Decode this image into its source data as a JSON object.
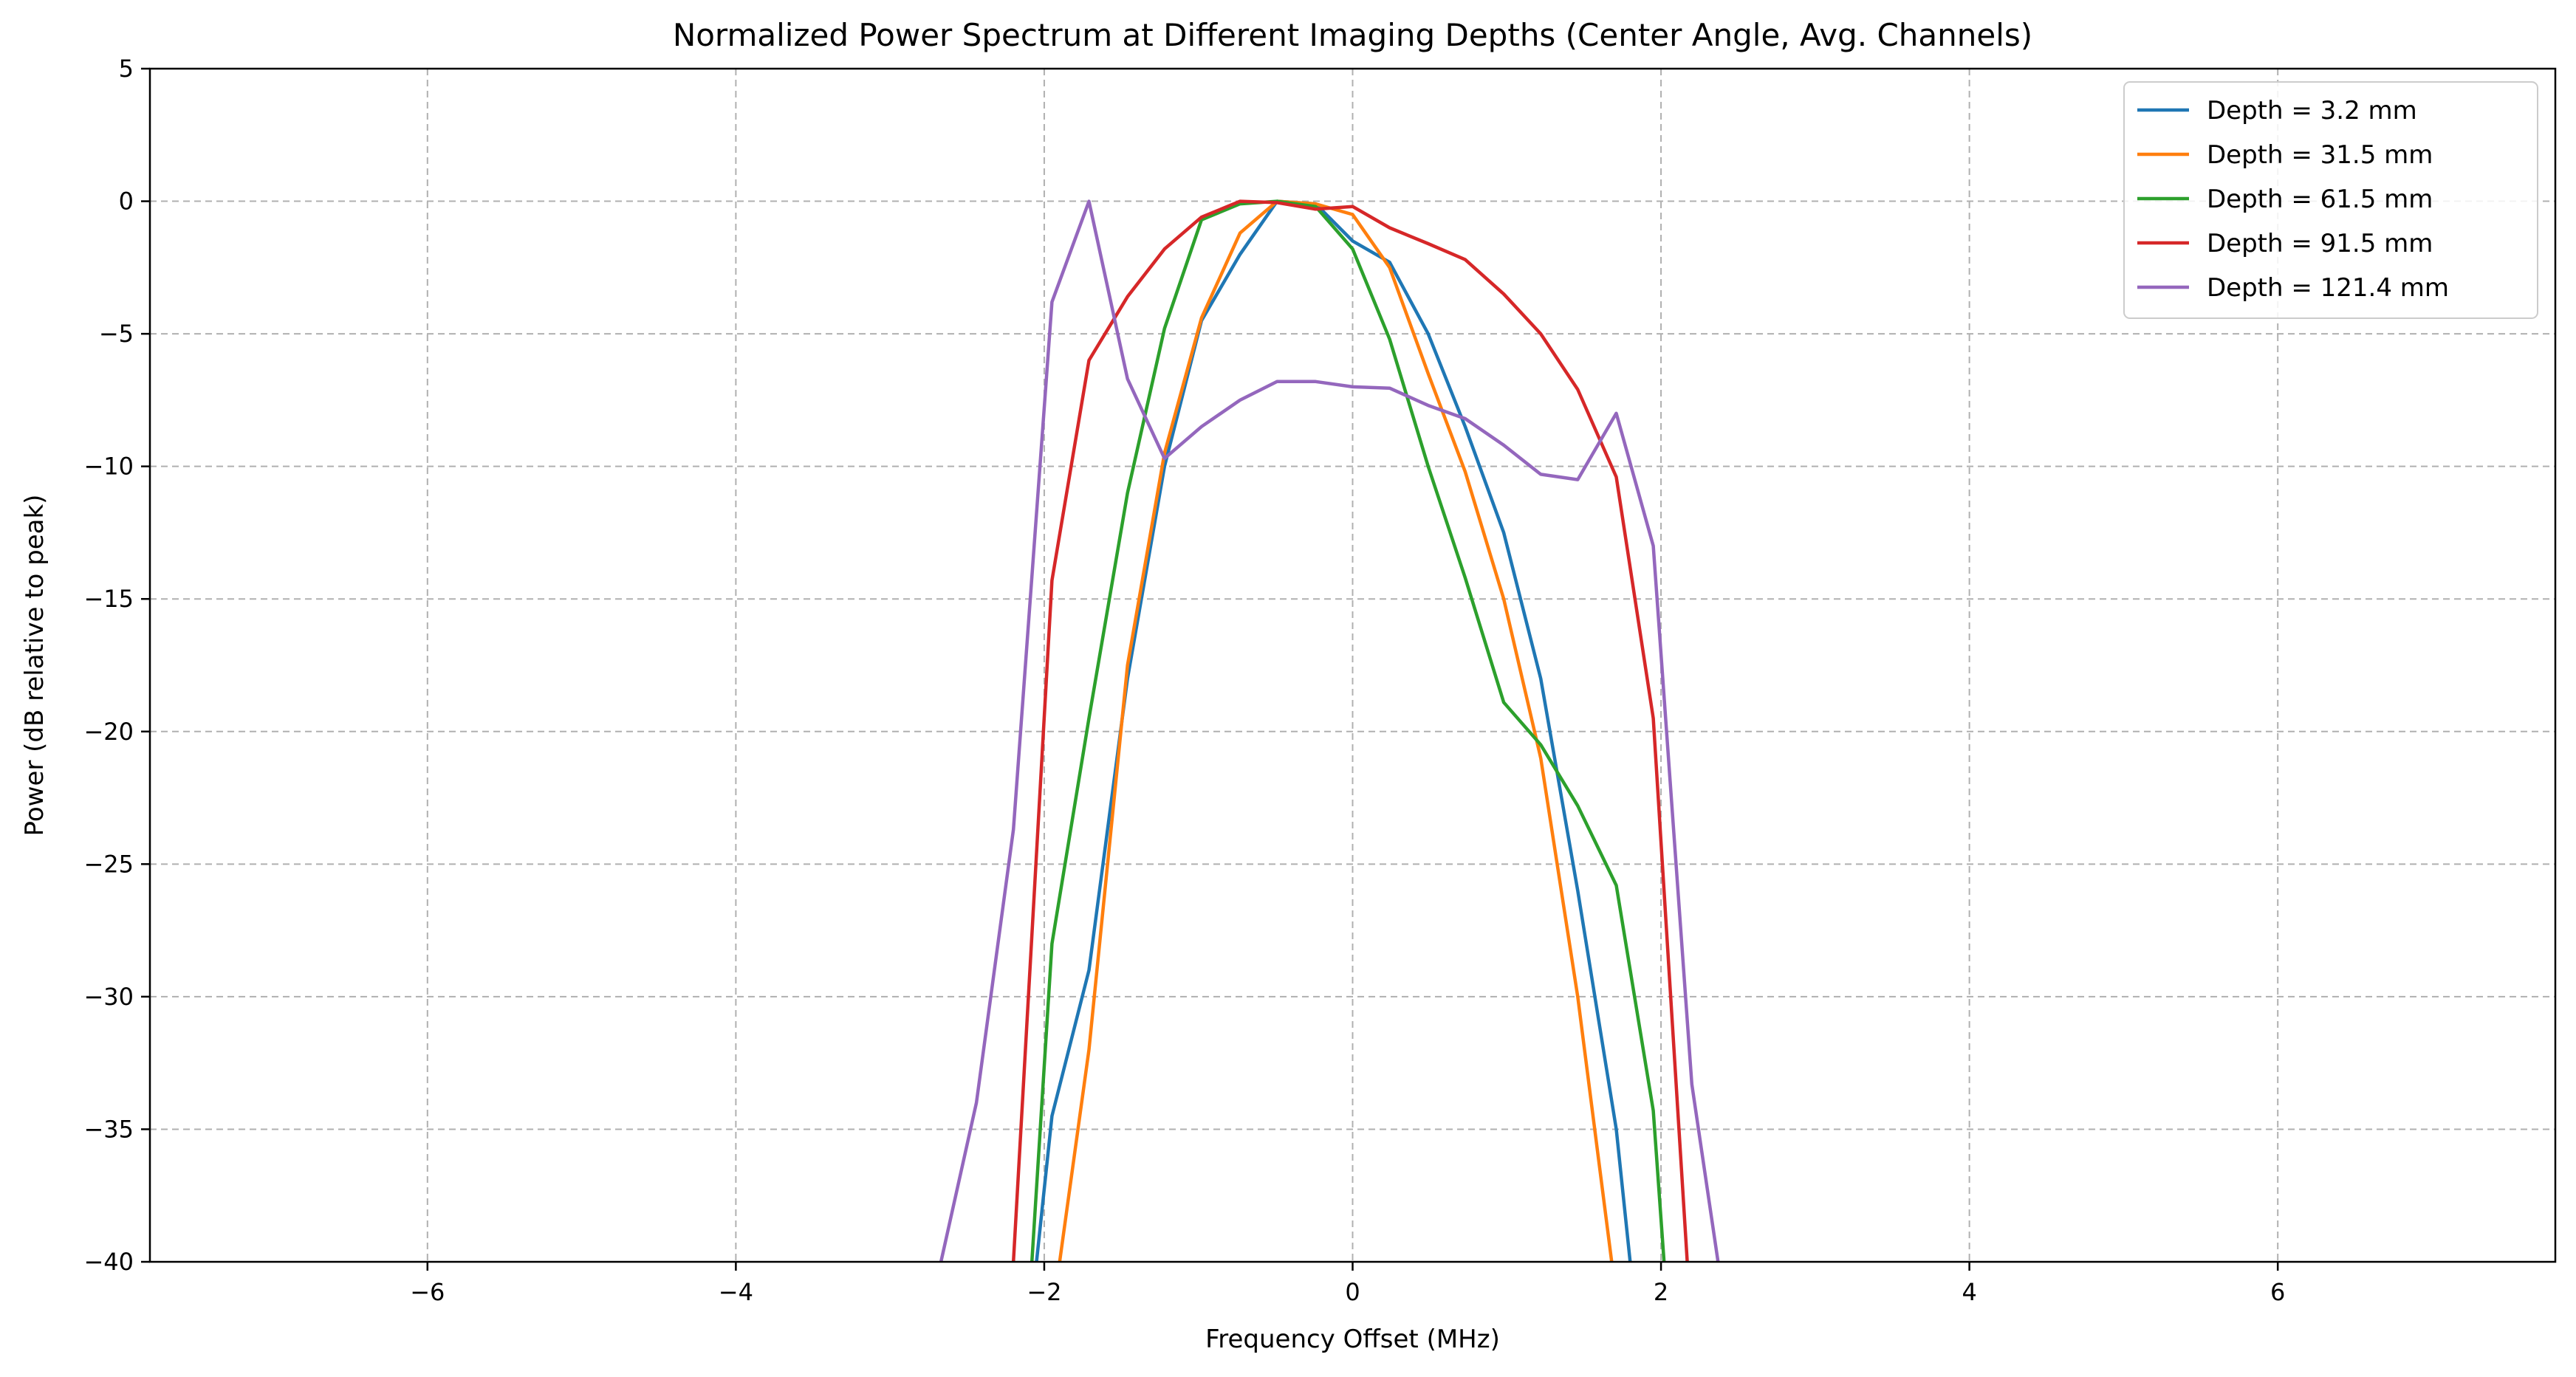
{
  "chart_data": {
    "type": "line",
    "title": "Normalized Power Spectrum at Different Imaging Depths (Center Angle, Avg. Channels)",
    "xlabel": "Frequency Offset (MHz)",
    "ylabel": "Power (dB relative to peak)",
    "xlim": [
      -7.8,
      7.8
    ],
    "ylim": [
      -40,
      5
    ],
    "xticks": [
      -6,
      -4,
      -2,
      0,
      2,
      4,
      6
    ],
    "yticks": [
      5,
      0,
      -5,
      -10,
      -15,
      -20,
      -25,
      -30,
      -35,
      -40
    ],
    "grid": true,
    "legend_position": "top-right",
    "series": [
      {
        "name": "Depth = 3.2 mm",
        "color": "#1f77b4",
        "x": [
          -2.05,
          -1.95,
          -1.71,
          -1.46,
          -1.22,
          -0.98,
          -0.73,
          -0.49,
          -0.24,
          0.0,
          0.24,
          0.49,
          0.73,
          0.98,
          1.22,
          1.46,
          1.71,
          1.8
        ],
        "y": [
          -40,
          -34.5,
          -29,
          -18,
          -10,
          -4.5,
          -2,
          0,
          -0.1,
          -1.5,
          -2.3,
          -5,
          -8.5,
          -12.5,
          -18,
          -26,
          -35,
          -40
        ]
      },
      {
        "name": "Depth = 31.5 mm",
        "color": "#ff7f0e",
        "x": [
          -1.9,
          -1.71,
          -1.46,
          -1.22,
          -0.98,
          -0.73,
          -0.49,
          -0.24,
          0.0,
          0.24,
          0.49,
          0.73,
          0.98,
          1.22,
          1.46,
          1.68
        ],
        "y": [
          -40,
          -32,
          -17.5,
          -9.5,
          -4.4,
          -1.2,
          0,
          -0.1,
          -0.5,
          -2.5,
          -6.5,
          -10.2,
          -15,
          -21,
          -30,
          -40
        ]
      },
      {
        "name": "Depth = 61.5 mm",
        "color": "#2ca02c",
        "x": [
          -2.08,
          -1.95,
          -1.71,
          -1.46,
          -1.22,
          -0.98,
          -0.73,
          -0.49,
          -0.24,
          0.0,
          0.24,
          0.49,
          0.73,
          0.98,
          1.22,
          1.46,
          1.71,
          1.95,
          2.02
        ],
        "y": [
          -40,
          -28,
          -19.5,
          -11,
          -4.8,
          -0.7,
          -0.1,
          0,
          -0.2,
          -1.8,
          -5.2,
          -10,
          -14.2,
          -18.9,
          -20.5,
          -22.8,
          -25.8,
          -34.3,
          -40
        ]
      },
      {
        "name": "Depth = 91.5 mm",
        "color": "#d62728",
        "x": [
          -2.2,
          -1.95,
          -1.71,
          -1.46,
          -1.22,
          -0.98,
          -0.73,
          -0.49,
          -0.24,
          0.0,
          0.24,
          0.49,
          0.73,
          0.98,
          1.22,
          1.46,
          1.71,
          1.95,
          2.17
        ],
        "y": [
          -40,
          -14.3,
          -6,
          -3.6,
          -1.8,
          -0.6,
          0,
          -0.05,
          -0.3,
          -0.2,
          -1,
          -1.6,
          -2.2,
          -3.5,
          -5,
          -7.1,
          -10.4,
          -19.5,
          -40
        ]
      },
      {
        "name": "Depth = 121.4 mm",
        "color": "#9467bd",
        "x": [
          -2.67,
          -2.44,
          -2.2,
          -1.95,
          -1.71,
          -1.46,
          -1.22,
          -0.98,
          -0.73,
          -0.49,
          -0.24,
          0.0,
          0.24,
          0.49,
          0.73,
          0.98,
          1.22,
          1.46,
          1.71,
          1.95,
          2.2,
          2.37
        ],
        "y": [
          -40,
          -34,
          -23.7,
          -3.8,
          0,
          -6.7,
          -9.7,
          -8.5,
          -7.5,
          -6.8,
          -6.8,
          -7,
          -7.05,
          -7.7,
          -8.2,
          -9.2,
          -10.3,
          -10.5,
          -8,
          -13,
          -33.3,
          -40
        ]
      }
    ]
  }
}
